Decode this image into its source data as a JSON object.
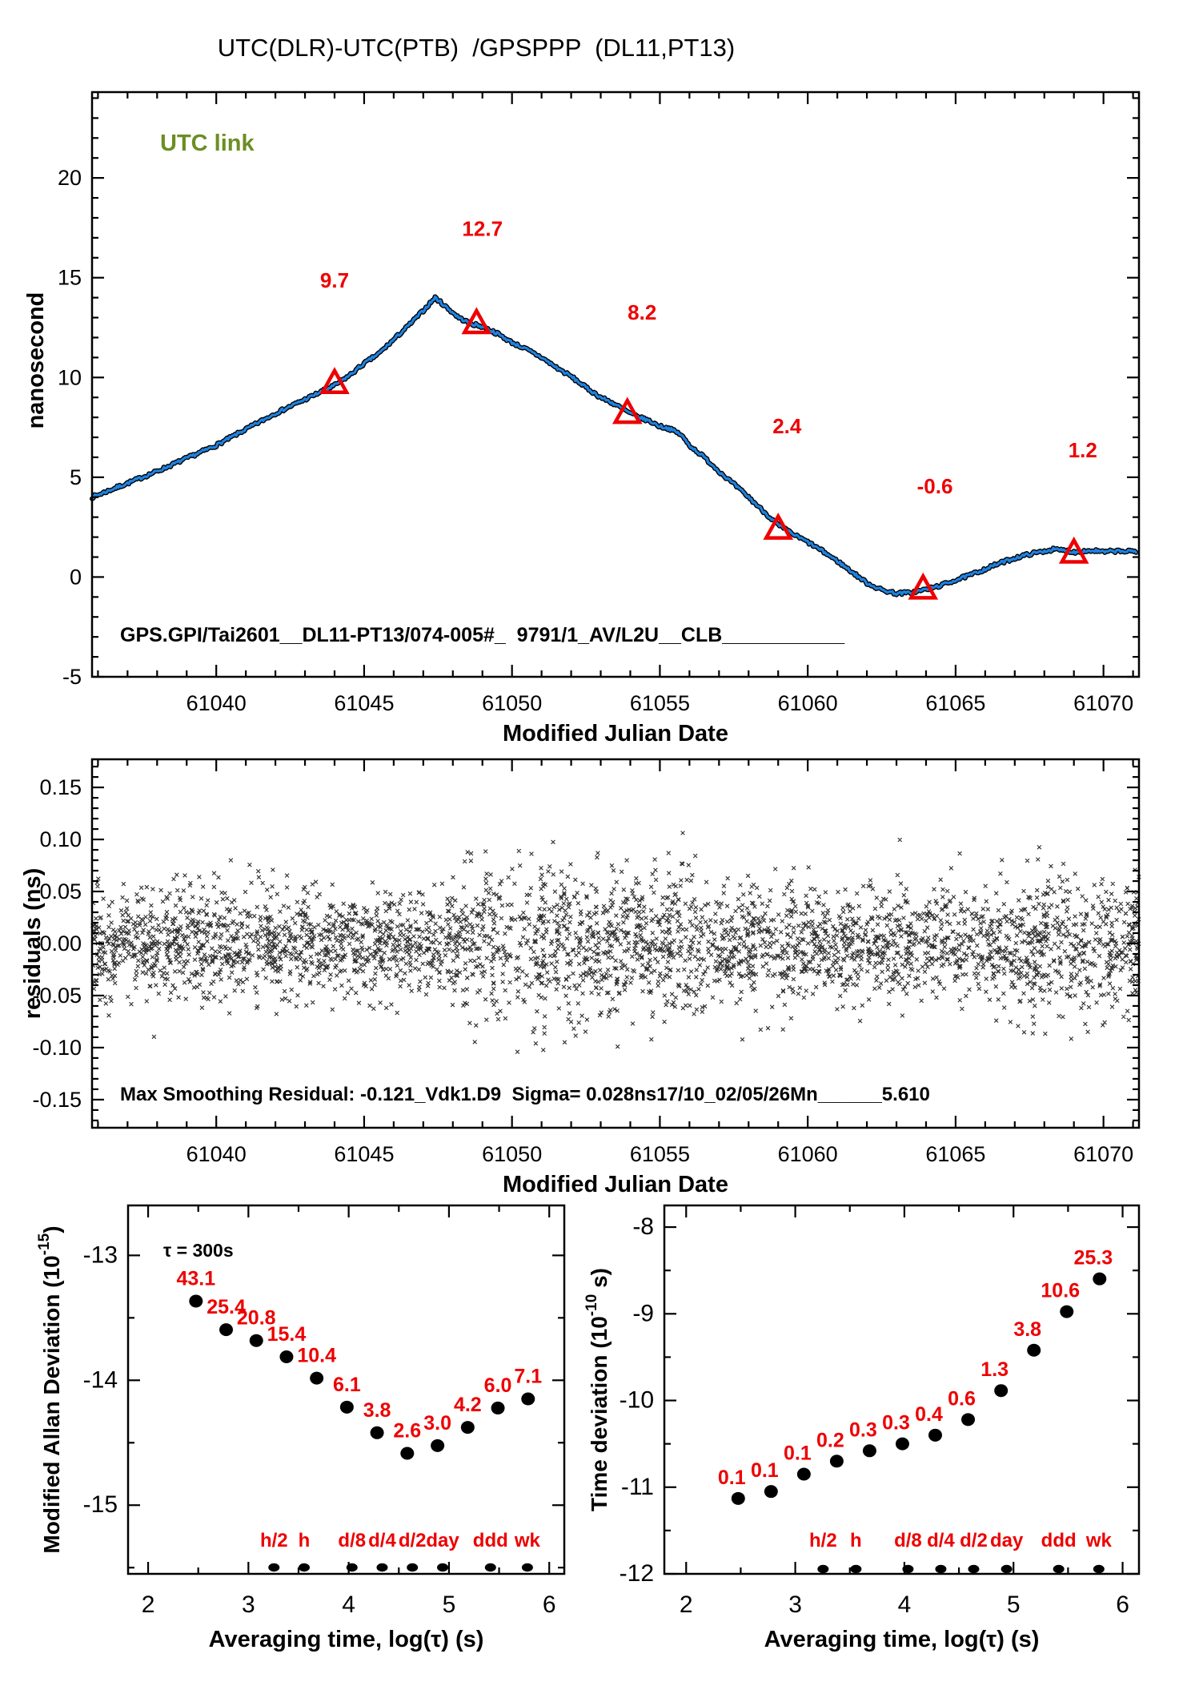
{
  "title": "UTC(DLR)-UTC(PTB)  /GPSPPP  (DL11,PT13)",
  "colors": {
    "background": "#ffffff",
    "text": "#000000",
    "line_blue": "#1e82e0",
    "line_outline": "#000000",
    "accent_red": "#ee0000",
    "utc_link_green": "#6b8e23"
  },
  "chart_data": [
    {
      "id": "utc-link-chart",
      "type": "line",
      "corner_label": "UTC link",
      "footer_label": "GPS.GPI/Tai2601__DL11-PT13/074-005#_  9791/1_AV/L2U__CLB___________",
      "xlabel": "Modified Julian Date",
      "ylabel": "nanosecond",
      "xlim": [
        61035.8,
        61071.2
      ],
      "ylim": [
        -5,
        24.3
      ],
      "xticks": [
        61040,
        61045,
        61050,
        61055,
        61060,
        61065,
        61070
      ],
      "xtick_labels": [
        "61040",
        "61045",
        "61050",
        "61055",
        "61060",
        "61065",
        "61070"
      ],
      "yticks": [
        -5,
        0,
        5,
        10,
        15,
        20
      ],
      "ytick_labels": [
        "-5",
        "0",
        "5",
        "10",
        "15",
        "20"
      ],
      "x_minor_step": 1,
      "y_minor_step": 1,
      "line_points": [
        [
          61035.8,
          4.0
        ],
        [
          61037,
          4.7
        ],
        [
          61038,
          5.3
        ],
        [
          61039,
          5.95
        ],
        [
          61040,
          6.6
        ],
        [
          61041,
          7.4
        ],
        [
          61042,
          8.2
        ],
        [
          61043,
          8.9
        ],
        [
          61044,
          9.6
        ],
        [
          61044.5,
          10.1
        ],
        [
          61045,
          10.7
        ],
        [
          61045.5,
          11.2
        ],
        [
          61046,
          11.9
        ],
        [
          61046.5,
          12.6
        ],
        [
          61047,
          13.35
        ],
        [
          61047.4,
          14.0
        ],
        [
          61047.8,
          13.5
        ],
        [
          61048.2,
          13.0
        ],
        [
          61048.6,
          12.7
        ],
        [
          61049,
          12.55
        ],
        [
          61049.5,
          12.2
        ],
        [
          61050,
          11.75
        ],
        [
          61050.5,
          11.4
        ],
        [
          61051,
          11.0
        ],
        [
          61051.5,
          10.5
        ],
        [
          61052,
          10.05
        ],
        [
          61052.5,
          9.5
        ],
        [
          61053,
          9.0
        ],
        [
          61053.3,
          8.8
        ],
        [
          61053.6,
          8.55
        ],
        [
          61054,
          8.2
        ],
        [
          61054.3,
          8.0
        ],
        [
          61054.6,
          7.85
        ],
        [
          61055,
          7.55
        ],
        [
          61055.3,
          7.45
        ],
        [
          61055.7,
          7.15
        ],
        [
          61056,
          6.6
        ],
        [
          61056.5,
          6.0
        ],
        [
          61057,
          5.3
        ],
        [
          61057.5,
          4.65
        ],
        [
          61058,
          4.0
        ],
        [
          61058.5,
          3.3
        ],
        [
          61059,
          2.6
        ],
        [
          61059.5,
          2.15
        ],
        [
          61060,
          1.75
        ],
        [
          61060.5,
          1.3
        ],
        [
          61061,
          0.8
        ],
        [
          61061.5,
          0.25
        ],
        [
          61062,
          -0.3
        ],
        [
          61062.5,
          -0.65
        ],
        [
          61063,
          -0.82
        ],
        [
          61063.5,
          -0.78
        ],
        [
          61064,
          -0.62
        ],
        [
          61064.5,
          -0.42
        ],
        [
          61065,
          -0.15
        ],
        [
          61065.5,
          0.1
        ],
        [
          61066,
          0.4
        ],
        [
          61066.5,
          0.7
        ],
        [
          61067,
          0.95
        ],
        [
          61067.5,
          1.15
        ],
        [
          61068,
          1.3
        ],
        [
          61068.3,
          1.38
        ],
        [
          61068.7,
          1.33
        ],
        [
          61069,
          1.25
        ],
        [
          61069.3,
          1.3
        ],
        [
          61069.7,
          1.32
        ],
        [
          61070,
          1.25
        ],
        [
          61070.4,
          1.3
        ],
        [
          61070.8,
          1.28
        ],
        [
          61071.1,
          1.3
        ]
      ],
      "noise_amplitude_ns": 0.16,
      "noise_seed": 7,
      "markers": [
        {
          "x": 61044.0,
          "y": 9.7,
          "label": "9.7",
          "label_x": 61044.0,
          "label_y": 14.5
        },
        {
          "x": 61048.8,
          "y": 12.7,
          "label": "12.7",
          "label_x": 61049.0,
          "label_y": 17.1
        },
        {
          "x": 61053.9,
          "y": 8.2,
          "label": "8.2",
          "label_x": 61054.4,
          "label_y": 12.9
        },
        {
          "x": 61059.0,
          "y": 2.4,
          "label": "2.4",
          "label_x": 61059.3,
          "label_y": 7.2
        },
        {
          "x": 61063.9,
          "y": -0.6,
          "label": "-0.6",
          "label_x": 61064.3,
          "label_y": 4.2
        },
        {
          "x": 61069.0,
          "y": 1.2,
          "label": "1.2",
          "label_x": 61069.3,
          "label_y": 6.0
        }
      ]
    },
    {
      "id": "residuals-chart",
      "type": "scatter",
      "footer_label": "Max Smoothing Residual: -0.121_Vdk1.D9  Sigma= 0.028ns17/10_02/05/26Mn______5.610",
      "xlabel": "Modified Julian Date",
      "ylabel": "residuals (ns)",
      "xlim": [
        61035.8,
        61071.2
      ],
      "ylim": [
        -0.177,
        0.177
      ],
      "xticks": [
        61040,
        61045,
        61050,
        61055,
        61060,
        61065,
        61070
      ],
      "xtick_labels": [
        "61040",
        "61045",
        "61050",
        "61055",
        "61060",
        "61065",
        "61070"
      ],
      "yticks": [
        -0.15,
        -0.1,
        -0.05,
        0,
        0.05,
        0.1,
        0.15
      ],
      "ytick_labels": [
        "-0.15",
        "-0.10",
        "-0.05",
        "0.00",
        "0.05",
        "0.10",
        "0.15"
      ],
      "x_minor_step": 1,
      "y_minor_step": 0.01,
      "scatter": {
        "marker": "x",
        "n_points": 3600,
        "seed": 42,
        "sigma_base": 0.0255,
        "sigma_reported": 0.028,
        "clip": 0.122,
        "bands": [
          {
            "from": 61039.2,
            "to": 61041.6,
            "sigma": 0.029
          },
          {
            "from": 61048.3,
            "to": 61050.6,
            "sigma": 0.04
          },
          {
            "from": 61050.6,
            "to": 61053.2,
            "sigma": 0.037
          },
          {
            "from": 61053.2,
            "to": 61056.8,
            "sigma": 0.036
          },
          {
            "from": 61057.5,
            "to": 61059.5,
            "sigma": 0.03
          },
          {
            "from": 61066.5,
            "to": 61069.5,
            "sigma": 0.037
          },
          {
            "from": 61069.5,
            "to": 61071.2,
            "sigma": 0.033
          }
        ]
      }
    },
    {
      "id": "mdev-chart",
      "type": "scatter-labeled",
      "annotation": "τ = 300s",
      "xlabel": "Averaging time, log(τ) (s)",
      "ylabel": {
        "prefix": "Modified Allan Deviation (10",
        "sup": "-15",
        "suffix": ")"
      },
      "xlim": [
        1.8,
        6.15
      ],
      "ylim": [
        -15.55,
        -12.6
      ],
      "xticks": [
        2,
        3,
        4,
        5,
        6
      ],
      "xtick_labels": [
        "2",
        "3",
        "4",
        "5",
        "6"
      ],
      "yticks": [
        -15,
        -14,
        -13
      ],
      "ytick_labels": [
        "-15",
        "-14",
        "-13"
      ],
      "x_minor_step": 0.5,
      "y_minor_step": 0.5,
      "points": {
        "x": [
          2.477,
          2.778,
          3.079,
          3.38,
          3.681,
          3.982,
          4.283,
          4.584,
          4.886,
          5.187,
          5.488,
          5.789
        ],
        "y": [
          -13.366,
          -13.595,
          -13.682,
          -13.812,
          -13.983,
          -14.215,
          -14.42,
          -14.585,
          -14.523,
          -14.377,
          -14.222,
          -14.149
        ],
        "labels": [
          "43.1",
          "25.4",
          "20.8",
          "15.4",
          "10.4",
          "6.1",
          "3.8",
          "2.6",
          "3.0",
          "4.2",
          "6.0",
          "7.1"
        ],
        "label_offset": [
          0,
          -20
        ]
      },
      "time_markers": {
        "labels": [
          "h/2",
          "h",
          "d/8",
          "d/4",
          "d/2",
          "day",
          "ddd",
          "wk"
        ],
        "x": [
          3.255,
          3.556,
          4.033,
          4.334,
          4.635,
          4.937,
          5.414,
          5.782
        ]
      }
    },
    {
      "id": "tdev-chart",
      "type": "scatter-labeled",
      "annotation": "",
      "xlabel": "Averaging time, log(τ) (s)",
      "ylabel": {
        "prefix": "Time deviation (10",
        "sup": "-10",
        "suffix": " s)"
      },
      "xlim": [
        1.8,
        6.15
      ],
      "ylim": [
        -12,
        -7.75
      ],
      "xticks": [
        2,
        3,
        4,
        5,
        6
      ],
      "xtick_labels": [
        "2",
        "3",
        "4",
        "5",
        "6"
      ],
      "yticks": [
        -12,
        -11,
        -10,
        -9,
        -8
      ],
      "ytick_labels": [
        "-12",
        "-11",
        "-10",
        "-9",
        "-8"
      ],
      "x_minor_step": 0.5,
      "y_minor_step": 0.5,
      "points": {
        "x": [
          2.477,
          2.778,
          3.079,
          3.38,
          3.681,
          3.982,
          4.283,
          4.584,
          4.886,
          5.187,
          5.488,
          5.789
        ],
        "y": [
          -11.13,
          -11.05,
          -10.85,
          -10.7,
          -10.58,
          -10.5,
          -10.4,
          -10.22,
          -9.886,
          -9.42,
          -8.975,
          -8.597
        ],
        "labels": [
          "0.1",
          "0.1",
          "0.1",
          "0.2",
          "0.3",
          "0.3",
          "0.4",
          "0.6",
          "1.3",
          "3.8",
          "10.6",
          "25.3"
        ],
        "label_offset": [
          -8,
          -18
        ]
      },
      "time_markers": {
        "labels": [
          "h/2",
          "h",
          "d/8",
          "d/4",
          "d/2",
          "day",
          "ddd",
          "wk"
        ],
        "x": [
          3.255,
          3.556,
          4.033,
          4.334,
          4.635,
          4.937,
          5.414,
          5.782
        ]
      }
    }
  ]
}
